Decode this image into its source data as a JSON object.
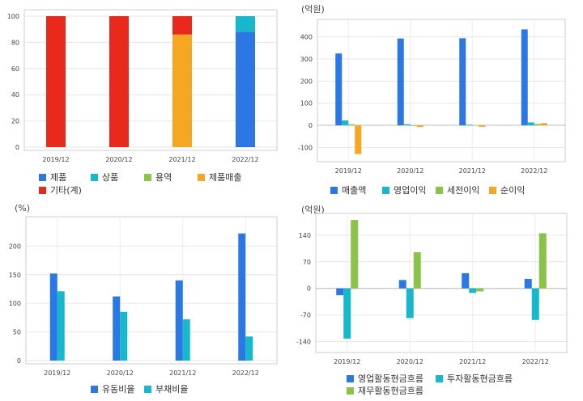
{
  "chart_data": [
    {
      "type": "bar",
      "stacked": true,
      "unit": "",
      "categories": [
        "2019/12",
        "2020/12",
        "2021/12",
        "2022/12"
      ],
      "ylim": [
        0,
        100
      ],
      "yticks": [
        0,
        20,
        40,
        60,
        80,
        100
      ],
      "grid": true,
      "legend_position": "bottom",
      "series": [
        {
          "name": "제품",
          "color": "#2b78e4",
          "values": [
            0,
            0,
            0,
            88
          ]
        },
        {
          "name": "상품",
          "color": "#18b8cc",
          "values": [
            0,
            0,
            0,
            12
          ]
        },
        {
          "name": "용역",
          "color": "#8bc34a",
          "values": [
            0,
            0,
            0,
            0
          ]
        },
        {
          "name": "제품매출",
          "color": "#f5a623",
          "values": [
            0,
            0,
            86,
            0
          ]
        },
        {
          "name": "기타(계)",
          "color": "#e8291c",
          "values": [
            100,
            100,
            14,
            0
          ]
        }
      ]
    },
    {
      "type": "bar",
      "unit": "(억원)",
      "categories": [
        "2019/12",
        "2020/12",
        "2021/12",
        "2022/12"
      ],
      "ylim": [
        -150,
        450
      ],
      "yticks": [
        -100,
        0,
        100,
        200,
        300,
        400
      ],
      "grid": true,
      "legend_position": "bottom",
      "series": [
        {
          "name": "매출액",
          "color": "#2b78e4",
          "values": [
            325,
            393,
            394,
            434
          ]
        },
        {
          "name": "영업이익",
          "color": "#18b8cc",
          "values": [
            22,
            5,
            3,
            13
          ]
        },
        {
          "name": "세전이익",
          "color": "#8bc34a",
          "values": [
            5,
            -3,
            -2,
            6
          ]
        },
        {
          "name": "순이익",
          "color": "#f5a623",
          "values": [
            -130,
            -8,
            -7,
            10
          ]
        }
      ]
    },
    {
      "type": "bar",
      "unit": "(%)",
      "categories": [
        "2019/12",
        "2020/12",
        "2021/12",
        "2022/12"
      ],
      "ylim": [
        0,
        240
      ],
      "yticks": [
        0,
        50,
        100,
        150,
        200
      ],
      "grid": true,
      "legend_position": "bottom",
      "series": [
        {
          "name": "유동비율",
          "color": "#2b78e4",
          "values": [
            152,
            112,
            140,
            222
          ]
        },
        {
          "name": "부채비율",
          "color": "#18b8cc",
          "values": [
            121,
            85,
            72,
            42
          ]
        }
      ]
    },
    {
      "type": "bar",
      "unit": "(억원)",
      "categories": [
        "2019/12",
        "2020/12",
        "2021/12",
        "2022/12"
      ],
      "ylim": [
        -160,
        180
      ],
      "yticks": [
        -140,
        -70,
        0,
        70,
        140
      ],
      "grid": true,
      "legend_position": "bottom",
      "series": [
        {
          "name": "영업활동현금흐름",
          "color": "#2b78e4",
          "values": [
            -18,
            22,
            40,
            25
          ]
        },
        {
          "name": "투자활동현금흐름",
          "color": "#18b8cc",
          "values": [
            -132,
            -78,
            -12,
            -83
          ]
        },
        {
          "name": "재무활동현금흐름",
          "color": "#8bc34a",
          "values": [
            180,
            95,
            -8,
            145
          ]
        }
      ]
    }
  ]
}
